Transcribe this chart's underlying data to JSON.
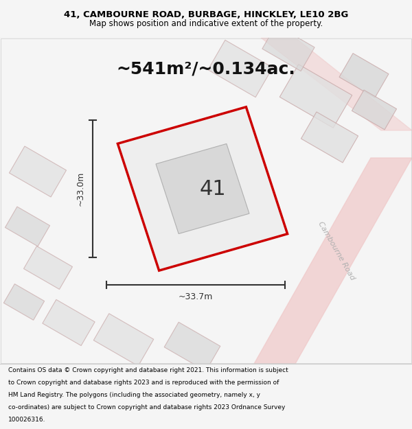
{
  "title_line1": "41, CAMBOURNE ROAD, BURBAGE, HINCKLEY, LE10 2BG",
  "title_line2": "Map shows position and indicative extent of the property.",
  "area_text": "~541m²/~0.134ac.",
  "property_number": "41",
  "dim_horizontal": "~33.7m",
  "dim_vertical": "~33.0m",
  "road_label": "Cambourne Road",
  "footer_text": "Contains OS data © Crown copyright and database right 2021. This information is subject to Crown copyright and database rights 2023 and is reproduced with the permission of HM Land Registry. The polygons (including the associated geometry, namely x, y co-ordinates) are subject to Crown copyright and database rights 2023 Ordnance Survey 100026316.",
  "bg_color": "#f5f5f5",
  "map_bg": "#ffffff",
  "property_fill": "#e8e8e8",
  "property_edge": "#cc0000",
  "building_fill": "#d8d8d8",
  "road_color": "#f0c8c8",
  "dim_line_color": "#333333",
  "text_color": "#000000",
  "road_text_color": "#b0b0b0",
  "title_bg": "#ffffff",
  "footer_bg": "#ffffff"
}
